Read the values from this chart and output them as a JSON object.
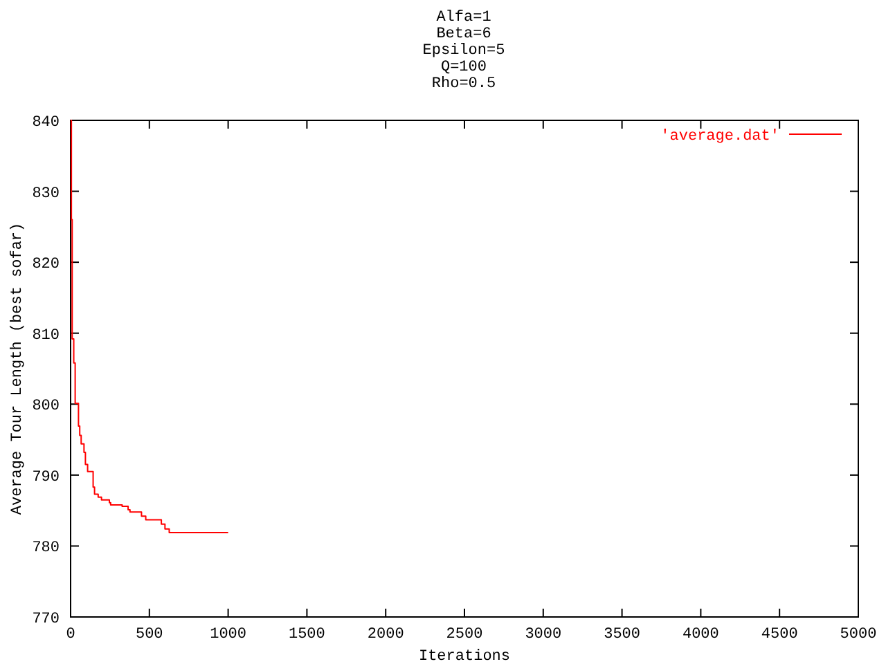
{
  "chart_data": {
    "type": "step",
    "title": "Alfa=1\nBeta=6\nEpsilon=5\nQ=100\nRho=0.5",
    "xlabel": "Iterations",
    "ylabel": "Average Tour Length (best sofar)",
    "xlim": [
      0,
      5000
    ],
    "xticks": [
      0,
      500,
      1000,
      1500,
      2000,
      2500,
      3000,
      3500,
      4000,
      4500,
      5000
    ],
    "ylim": [
      770,
      840
    ],
    "yticks": [
      770,
      780,
      790,
      800,
      810,
      820,
      830,
      840
    ],
    "legend": "top right",
    "grid": false,
    "series": [
      {
        "name": "'average.dat'",
        "color": "#ff0000",
        "x": [
          0,
          5,
          10,
          20,
          29,
          50,
          58,
          67,
          85,
          94,
          108,
          143,
          152,
          175,
          196,
          246,
          254,
          327,
          365,
          377,
          450,
          477,
          576,
          599,
          626,
          1000
        ],
        "values": [
          840,
          826,
          809.2,
          805.8,
          800.1,
          796.9,
          795.6,
          794.4,
          793.2,
          791.5,
          790.5,
          788.3,
          787.3,
          786.9,
          786.5,
          786.1,
          785.8,
          785.6,
          785.1,
          784.8,
          784.2,
          783.7,
          783.1,
          782.4,
          781.9,
          781.9
        ]
      }
    ]
  }
}
